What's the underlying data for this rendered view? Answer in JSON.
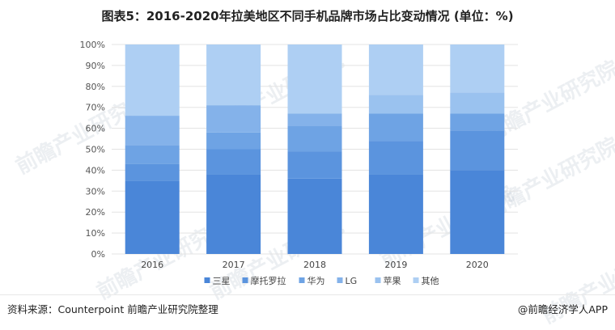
{
  "title": "图表5：2016-2020年拉美地区不同手机品牌市场占比变动情况 (单位：%)",
  "source": "资料来源：Counterpoint 前瞻产业研究院整理",
  "brand": "@前瞻经济学人APP",
  "watermark": "前瞻产业研究院",
  "chart_data": {
    "type": "bar",
    "stacked": true,
    "categories": [
      "2016",
      "2017",
      "2018",
      "2019",
      "2020"
    ],
    "series": [
      {
        "name": "三星",
        "color": "#4a86d8",
        "values": [
          35,
          38,
          36,
          38,
          40
        ]
      },
      {
        "name": "摩托罗拉",
        "color": "#5b94de",
        "values": [
          8,
          12,
          13,
          16,
          19
        ]
      },
      {
        "name": "华为",
        "color": "#6ea3e4",
        "values": [
          9,
          8,
          12,
          13,
          8
        ]
      },
      {
        "name": "LG",
        "color": "#84b2ea",
        "values": [
          14,
          13,
          6,
          0,
          0
        ]
      },
      {
        "name": "苹果",
        "color": "#9ac2ef",
        "values": [
          0,
          0,
          0,
          9,
          10
        ]
      },
      {
        "name": "其他",
        "color": "#aecff3",
        "values": [
          34,
          29,
          33,
          24,
          23
        ]
      }
    ],
    "yticks": [
      "0%",
      "10%",
      "20%",
      "30%",
      "40%",
      "50%",
      "60%",
      "70%",
      "80%",
      "90%",
      "100%"
    ],
    "ylim": [
      0,
      100
    ],
    "grid": true,
    "legend": "bottom"
  }
}
